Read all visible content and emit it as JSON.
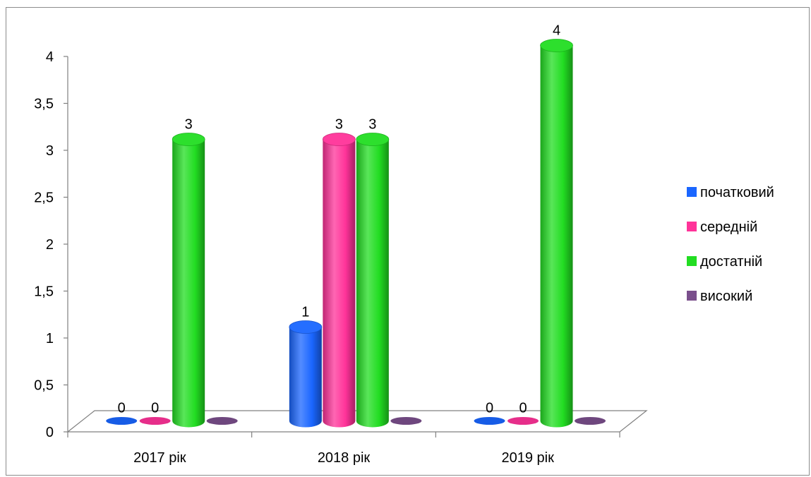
{
  "chart_data": {
    "type": "bar",
    "style": "3d-cylinder",
    "categories": [
      "2017 рік",
      "2018 рік",
      "2019 рік"
    ],
    "series": [
      {
        "name": "початковий",
        "color": "#1a66ff",
        "values": [
          0,
          1,
          0
        ]
      },
      {
        "name": "середній",
        "color": "#ff3399",
        "values": [
          0,
          3,
          0
        ]
      },
      {
        "name": "достатній",
        "color": "#22dd22",
        "values": [
          3,
          3,
          4
        ]
      },
      {
        "name": "високий",
        "color": "#7a4f8c",
        "values": [
          0,
          0,
          0
        ]
      }
    ],
    "data_labels": [
      [
        "0",
        "0",
        "3",
        ""
      ],
      [
        "1",
        "3",
        "3",
        ""
      ],
      [
        "0",
        "0",
        "4",
        ""
      ]
    ],
    "yticks": [
      "0",
      "0,5",
      "1",
      "1,5",
      "2",
      "2,5",
      "3",
      "3,5",
      "4"
    ],
    "ylim": [
      0,
      4
    ],
    "legend_position": "right",
    "grid": false
  }
}
